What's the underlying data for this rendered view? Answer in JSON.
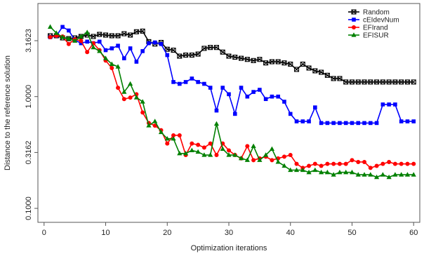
{
  "chart_data": {
    "type": "line",
    "xlabel": "Optimization iterations",
    "ylabel": "Distance to the reference solution",
    "y_scale": "log",
    "xlim": [
      -1,
      61
    ],
    "ylim": [
      0.075,
      6.8
    ],
    "x_ticks": [
      0,
      10,
      20,
      30,
      40,
      50,
      60
    ],
    "y_ticks": [
      0.1,
      0.3162,
      1.0,
      3.1623
    ],
    "y_tick_labels": [
      "0.1000",
      "0.3162",
      "1.0000",
      "3.1623"
    ],
    "grid": false,
    "legend_position": "top-right",
    "x": [
      1,
      2,
      3,
      4,
      5,
      6,
      7,
      8,
      9,
      10,
      11,
      12,
      13,
      14,
      15,
      16,
      17,
      18,
      19,
      20,
      21,
      22,
      23,
      24,
      25,
      26,
      27,
      28,
      29,
      30,
      31,
      32,
      33,
      34,
      35,
      36,
      37,
      38,
      39,
      40,
      41,
      42,
      43,
      44,
      45,
      46,
      47,
      48,
      49,
      50,
      51,
      52,
      53,
      54,
      55,
      56,
      57,
      58,
      59,
      60
    ],
    "series": [
      {
        "name": "Random",
        "color": "#000000",
        "marker": "square-x",
        "values": [
          3.5,
          3.5,
          3.35,
          3.3,
          3.35,
          3.45,
          3.55,
          3.45,
          3.6,
          3.55,
          3.5,
          3.5,
          3.65,
          3.55,
          3.8,
          3.85,
          3.1,
          2.95,
          3.05,
          2.65,
          2.6,
          2.3,
          2.35,
          2.35,
          2.4,
          2.7,
          2.75,
          2.75,
          2.5,
          2.3,
          2.25,
          2.2,
          2.15,
          2.1,
          2.15,
          2.0,
          2.05,
          2.05,
          2.0,
          1.95,
          1.75,
          1.95,
          1.8,
          1.7,
          1.65,
          1.55,
          1.45,
          1.45,
          1.35,
          1.35,
          1.35,
          1.35,
          1.35,
          1.35,
          1.35,
          1.35,
          1.35,
          1.35,
          1.35,
          1.35
        ]
      },
      {
        "name": "cEIdevNum",
        "color": "#0000ff",
        "marker": "square",
        "values": [
          3.4,
          3.5,
          4.2,
          3.9,
          3.2,
          3.0,
          3.1,
          3.0,
          3.1,
          2.6,
          2.7,
          2.85,
          2.2,
          2.7,
          2.05,
          2.55,
          3.0,
          3.05,
          2.95,
          2.35,
          1.35,
          1.3,
          1.35,
          1.45,
          1.35,
          1.3,
          1.2,
          0.75,
          1.2,
          1.05,
          0.7,
          1.2,
          1.0,
          1.1,
          1.15,
          0.95,
          1.0,
          1.0,
          0.9,
          0.7,
          0.6,
          0.6,
          0.6,
          0.8,
          0.58,
          0.58,
          0.58,
          0.58,
          0.58,
          0.58,
          0.58,
          0.58,
          0.58,
          0.58,
          0.85,
          0.85,
          0.85,
          0.6,
          0.6,
          0.6
        ]
      },
      {
        "name": "EFIrand",
        "color": "#ff0000",
        "marker": "circle",
        "values": [
          3.4,
          3.5,
          3.45,
          2.95,
          3.25,
          3.15,
          2.5,
          3.0,
          2.6,
          2.1,
          1.8,
          1.2,
          0.95,
          0.98,
          1.05,
          0.72,
          0.58,
          0.55,
          0.5,
          0.38,
          0.45,
          0.45,
          0.3,
          0.38,
          0.37,
          0.35,
          0.38,
          0.3,
          0.38,
          0.33,
          0.3,
          0.28,
          0.36,
          0.27,
          0.28,
          0.29,
          0.27,
          0.28,
          0.29,
          0.3,
          0.25,
          0.23,
          0.24,
          0.25,
          0.24,
          0.25,
          0.25,
          0.25,
          0.25,
          0.27,
          0.26,
          0.26,
          0.23,
          0.24,
          0.25,
          0.26,
          0.25,
          0.25,
          0.25,
          0.25
        ]
      },
      {
        "name": "EFISUR",
        "color": "#008000",
        "marker": "triangle",
        "values": [
          4.2,
          3.7,
          3.4,
          3.3,
          3.15,
          3.45,
          3.75,
          2.75,
          2.55,
          2.2,
          1.95,
          1.85,
          1.1,
          1.3,
          0.98,
          0.9,
          0.55,
          0.6,
          0.48,
          0.42,
          0.42,
          0.31,
          0.31,
          0.33,
          0.32,
          0.3,
          0.3,
          0.57,
          0.34,
          0.3,
          0.3,
          0.28,
          0.27,
          0.36,
          0.27,
          0.3,
          0.34,
          0.26,
          0.24,
          0.22,
          0.22,
          0.22,
          0.21,
          0.22,
          0.21,
          0.21,
          0.2,
          0.21,
          0.21,
          0.21,
          0.2,
          0.2,
          0.2,
          0.19,
          0.2,
          0.19,
          0.2,
          0.2,
          0.2,
          0.2
        ]
      }
    ]
  }
}
